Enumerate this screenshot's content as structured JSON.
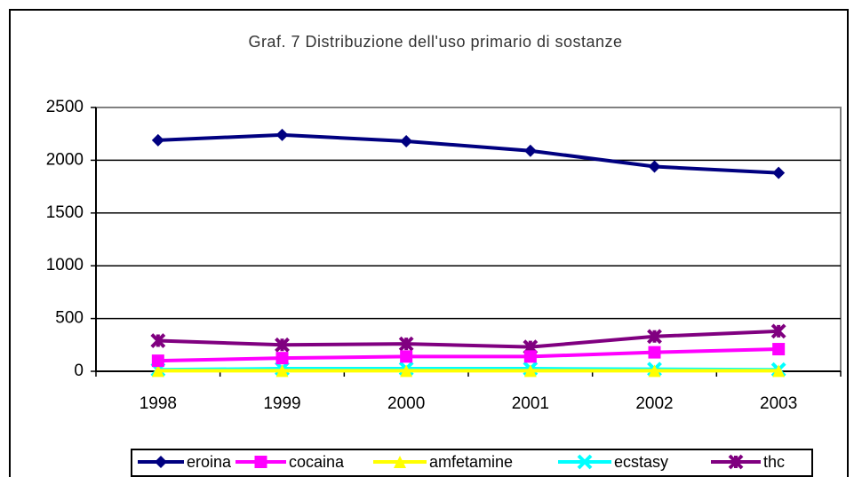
{
  "chart_data": {
    "type": "line",
    "title": "Graf. 7 Distribuzione dell'uso primario di sostanze",
    "categories": [
      "1998",
      "1999",
      "2000",
      "2001",
      "2002",
      "2003"
    ],
    "series": [
      {
        "name": "eroina",
        "color": "#000080",
        "marker": "diamond",
        "values": [
          2190,
          2240,
          2180,
          2090,
          1940,
          1880
        ]
      },
      {
        "name": "cocaina",
        "color": "#ff00ff",
        "marker": "square",
        "values": [
          100,
          125,
          140,
          140,
          180,
          210
        ]
      },
      {
        "name": "amfetamine",
        "color": "#ffff00",
        "marker": "triangle",
        "values": [
          5,
          5,
          5,
          5,
          5,
          5
        ]
      },
      {
        "name": "ecstasy",
        "color": "#00ffff",
        "marker": "x",
        "values": [
          15,
          25,
          25,
          25,
          20,
          15
        ]
      },
      {
        "name": "thc",
        "color": "#800080",
        "marker": "star",
        "values": [
          290,
          250,
          260,
          230,
          330,
          380
        ]
      }
    ],
    "ylim": [
      0,
      2500
    ],
    "yticks": [
      0,
      500,
      1000,
      1500,
      2000,
      2500
    ],
    "grid": true,
    "legend": "bottom"
  }
}
